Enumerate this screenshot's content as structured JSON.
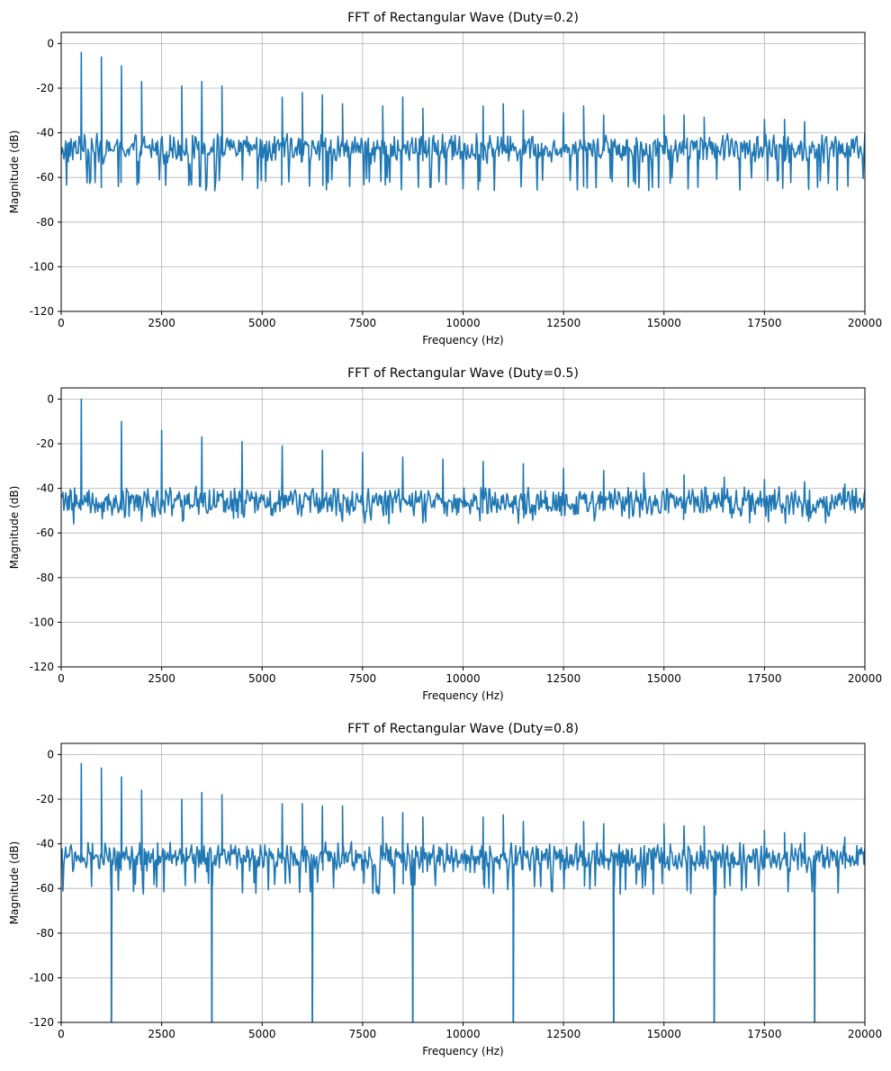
{
  "figure": {
    "colors": {
      "line": "#1f77b4",
      "grid": "#b0b0b0",
      "axes": "#000000",
      "background": "#ffffff"
    }
  },
  "chart_data": [
    {
      "type": "line",
      "title": "FFT of Rectangular Wave (Duty=0.2)",
      "xlabel": "Frequency (Hz)",
      "ylabel": "Magnitude (dB)",
      "xlim": [
        0,
        20000
      ],
      "ylim": [
        -120,
        5
      ],
      "xticks": [
        0,
        2500,
        5000,
        7500,
        10000,
        12500,
        15000,
        17500,
        20000
      ],
      "yticks": [
        0,
        -20,
        -40,
        -60,
        -80,
        -100,
        -120
      ],
      "grid": true,
      "fundamental_hz": 500,
      "duty": 0.2,
      "noise_floor_db": [
        -66,
        -42
      ],
      "peaks": {
        "x": [
          500,
          1000,
          1500,
          2000,
          3000,
          3500,
          4000,
          5500,
          6000,
          6500,
          7000,
          8000,
          8500,
          9000,
          10500,
          11000,
          11500,
          12500,
          13000,
          13500,
          15000,
          15500,
          16000,
          17500,
          18000,
          18500,
          20000
        ],
        "y": [
          -4,
          -6,
          -10,
          -17,
          -19,
          -17,
          -19,
          -24,
          -22,
          -23,
          -27,
          -28,
          -24,
          -29,
          -28,
          -27,
          -30,
          -31,
          -28,
          -32,
          -32,
          -32,
          -33,
          -34,
          -34,
          -35,
          -40
        ]
      },
      "series": [
        {
          "name": "Duty=0.2"
        }
      ]
    },
    {
      "type": "line",
      "title": "FFT of Rectangular Wave (Duty=0.5)",
      "xlabel": "Frequency (Hz)",
      "ylabel": "Magnitude (dB)",
      "xlim": [
        0,
        20000
      ],
      "ylim": [
        -120,
        5
      ],
      "xticks": [
        0,
        2500,
        5000,
        7500,
        10000,
        12500,
        15000,
        17500,
        20000
      ],
      "yticks": [
        0,
        -20,
        -40,
        -60,
        -80,
        -100,
        -120
      ],
      "grid": true,
      "fundamental_hz": 500,
      "duty": 0.5,
      "noise_floor_db": [
        -56,
        -41
      ],
      "peaks": {
        "x": [
          500,
          1500,
          2500,
          3500,
          4500,
          5500,
          6500,
          7500,
          8500,
          9500,
          10500,
          11500,
          12500,
          13500,
          14500,
          15500,
          16500,
          17500,
          18500,
          19500
        ],
        "y": [
          0,
          -10,
          -14,
          -17,
          -19,
          -21,
          -23,
          -24,
          -26,
          -27,
          -28,
          -29,
          -31,
          -32,
          -33,
          -34,
          -35,
          -36,
          -37,
          -38
        ]
      },
      "series": [
        {
          "name": "Duty=0.5"
        }
      ]
    },
    {
      "type": "line",
      "title": "FFT of Rectangular Wave (Duty=0.8)",
      "xlabel": "Frequency (Hz)",
      "ylabel": "Magnitude (dB)",
      "xlim": [
        0,
        20000
      ],
      "ylim": [
        -120,
        5
      ],
      "xticks": [
        0,
        2500,
        5000,
        7500,
        10000,
        12500,
        15000,
        17500,
        20000
      ],
      "yticks": [
        0,
        -20,
        -40,
        -60,
        -80,
        -100,
        -120
      ],
      "grid": true,
      "fundamental_hz": 500,
      "duty": 0.8,
      "noise_floor_db": [
        -63,
        -41
      ],
      "peaks": {
        "x": [
          500,
          1000,
          1500,
          2000,
          3000,
          3500,
          4000,
          5500,
          6000,
          6500,
          7000,
          8000,
          8500,
          9000,
          10500,
          11000,
          11500,
          13000,
          13500,
          15000,
          15500,
          16000,
          17500,
          18000,
          18500,
          19500
        ],
        "y": [
          -4,
          -6,
          -10,
          -16,
          -20,
          -17,
          -18,
          -22,
          -22,
          -23,
          -23,
          -28,
          -26,
          -28,
          -28,
          -27,
          -30,
          -30,
          -31,
          -31,
          -32,
          -32,
          -34,
          -35,
          -35,
          -37
        ]
      },
      "deep_nulls": {
        "x": [
          1250,
          3750,
          6250,
          8750,
          11250,
          13750,
          16250,
          18750
        ],
        "y": -120
      },
      "series": [
        {
          "name": "Duty=0.8"
        }
      ]
    }
  ]
}
